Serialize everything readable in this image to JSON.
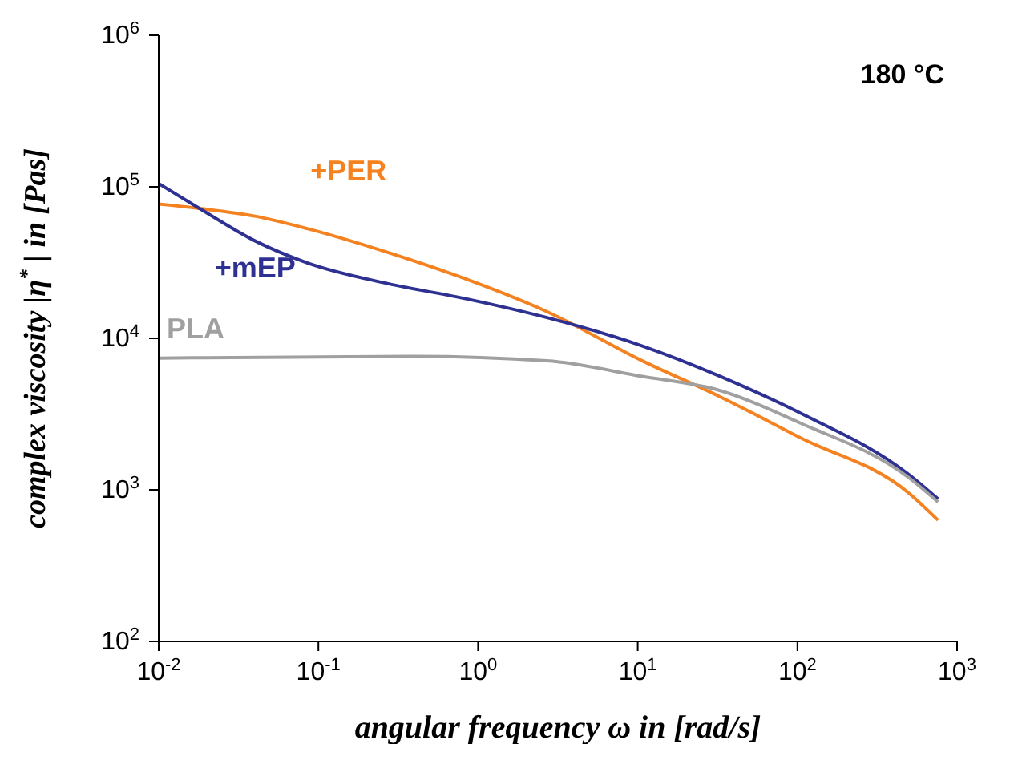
{
  "chart_data": {
    "type": "line",
    "xlabel": "angular frequency ω in [rad/s]",
    "ylabel": "complex viscosity |η$^{*}$| in [Pas]",
    "annotations": [
      "180 °C"
    ],
    "log": "xy",
    "marker": "none",
    "line_style": "solid",
    "xlim": [
      0.01,
      1000
    ],
    "ylim": [
      100,
      1000000
    ],
    "xticks": [
      {
        "value": 0.01,
        "label": "10$^{-2}$"
      },
      {
        "value": 0.1,
        "label": "10$^{-1}$"
      },
      {
        "value": 1,
        "label": "10$^{0}$"
      },
      {
        "value": 10,
        "label": "10$^{1}$"
      },
      {
        "value": 100,
        "label": "10$^{2}$"
      },
      {
        "value": 1000,
        "label": "10$^{3}$"
      }
    ],
    "yticks": [
      {
        "value": 100,
        "label": "10$^{2}$"
      },
      {
        "value": 1000,
        "label": "10$^{3}$"
      },
      {
        "value": 10000,
        "label": "10$^{4}$"
      },
      {
        "value": 100000,
        "label": "10$^{5}$"
      },
      {
        "value": 1000000,
        "label": "10$^{6}$"
      }
    ],
    "series": [
      {
        "name": "+PER",
        "color": "#f58220",
        "x": [
          0.01,
          0.018,
          0.04,
          0.085,
          0.27,
          0.85,
          2.7,
          10.7,
          33,
          105,
          500,
          760
        ],
        "values": [
          77000,
          72000,
          64000,
          53000,
          37000,
          24500,
          15000,
          7100,
          4100,
          2200,
          950,
          630
        ]
      },
      {
        "name": "+mEP",
        "color": "#2e3192",
        "x": [
          0.01,
          0.018,
          0.04,
          0.085,
          0.27,
          0.85,
          2.7,
          10.7,
          33,
          105,
          500,
          760
        ],
        "values": [
          105000,
          72000,
          44000,
          31500,
          23000,
          18200,
          13700,
          8900,
          5600,
          3200,
          1260,
          870
        ]
      },
      {
        "name": "PLA",
        "color": "#a0a0a0",
        "x": [
          0.01,
          0.4,
          2.7,
          10.7,
          31,
          105,
          500,
          760
        ],
        "values": [
          7400,
          7600,
          7100,
          5600,
          4600,
          2750,
          1200,
          830
        ]
      }
    ]
  }
}
